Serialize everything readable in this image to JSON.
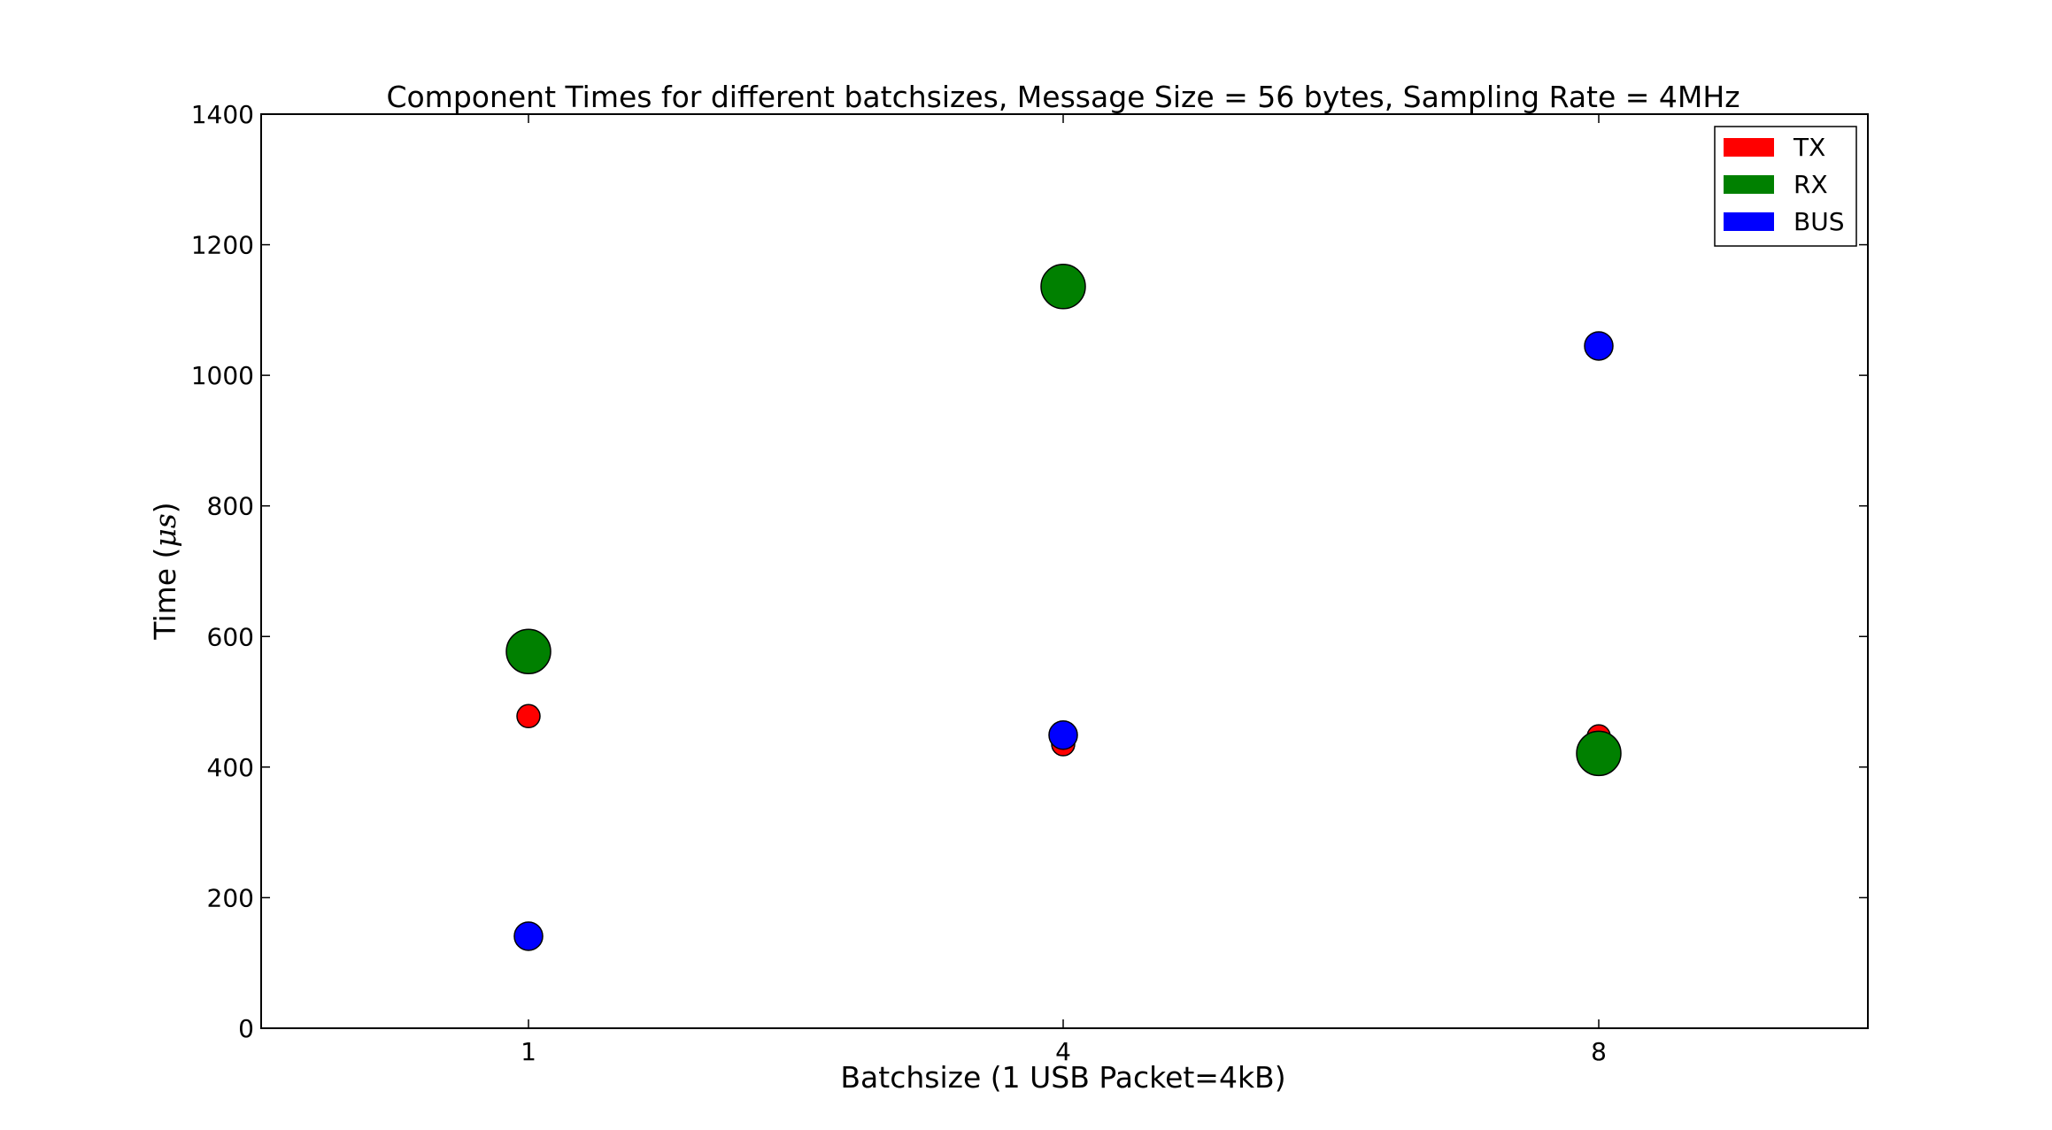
{
  "chart_data": {
    "type": "scatter",
    "title": "Component Times for different batchsizes, Message Size = 56 bytes, Sampling Rate = 4MHz",
    "xlabel": "Batchsize (1 USB Packet=4kB)",
    "ylabel_prefix": "Time (",
    "ylabel_symbol": "μs",
    "ylabel_suffix": ")",
    "categories": [
      "1",
      "4",
      "8"
    ],
    "ylim": [
      0,
      1400
    ],
    "yticks": [
      "0",
      "200",
      "400",
      "600",
      "800",
      "1000",
      "1200",
      "1400"
    ],
    "grid": false,
    "legend_position": "top-right",
    "series": [
      {
        "name": "TX",
        "color": "#ff0000",
        "values": [
          478,
          435,
          447
        ]
      },
      {
        "name": "RX",
        "color": "#008000",
        "values": [
          577,
          1136,
          421
        ]
      },
      {
        "name": "BUS",
        "color": "#0000ff",
        "values": [
          141,
          449,
          1045
        ]
      }
    ]
  }
}
